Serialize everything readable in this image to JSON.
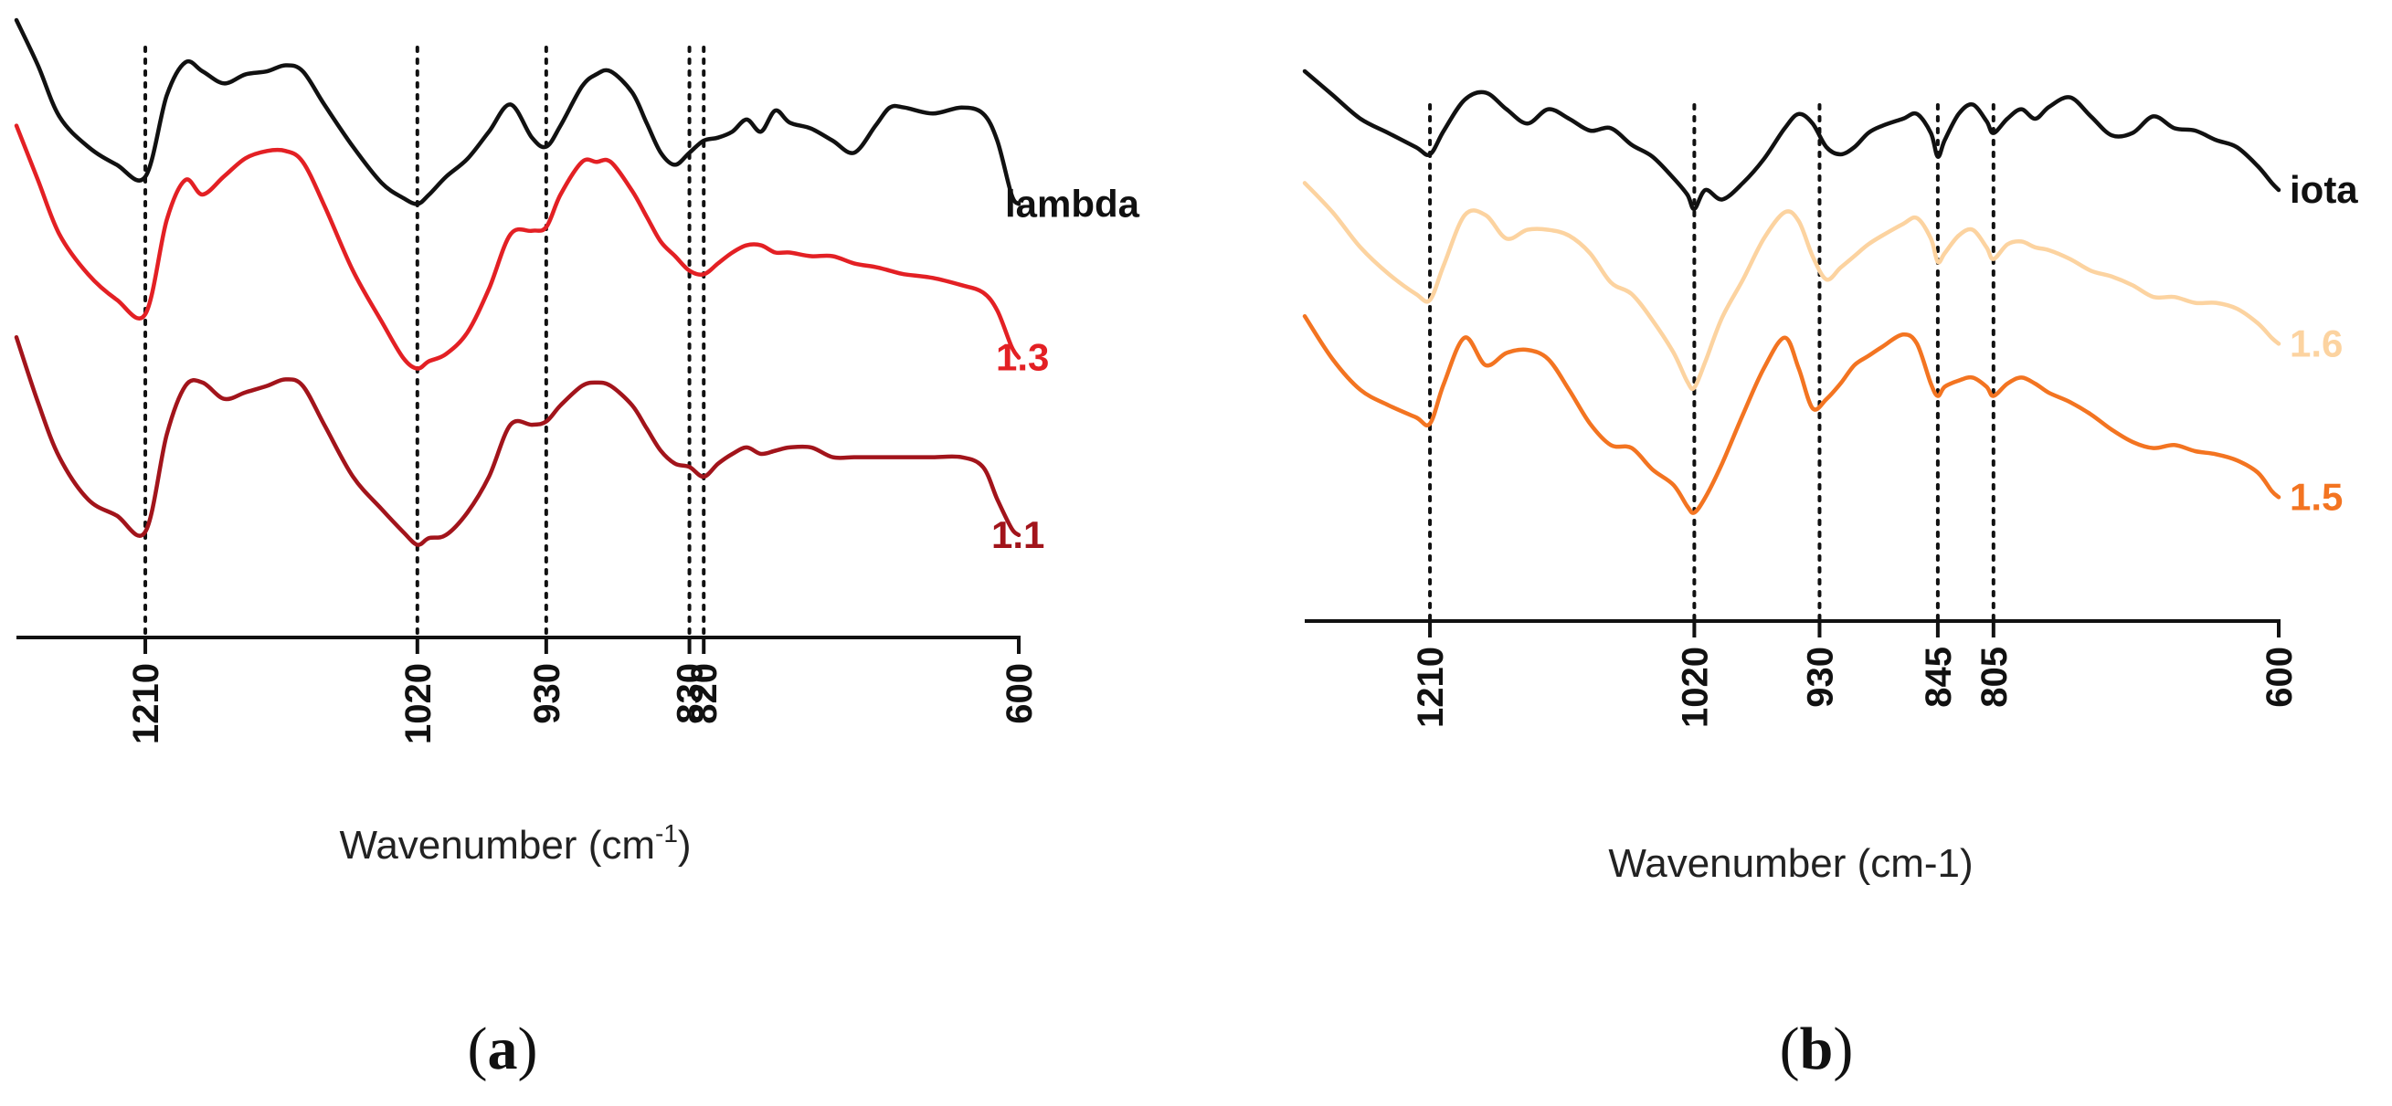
{
  "chart_data": [
    {
      "type": "line",
      "panel": "a",
      "panel_label": "a",
      "xlabel": "Wavenumber (cm",
      "xlabel_sup": "-1",
      "xlabel_end": ")",
      "xlim": [
        1300,
        600
      ],
      "x_ticks": [
        {
          "value": 1210,
          "label": "1210"
        },
        {
          "value": 1020,
          "label": "1020"
        },
        {
          "value": 930,
          "label": "930"
        },
        {
          "value": 830,
          "label": "830"
        },
        {
          "value": 820,
          "label": "820"
        },
        {
          "value": 600,
          "label": "600"
        }
      ],
      "reference_lines": [
        1210,
        1020,
        930,
        830,
        820
      ],
      "series": [
        {
          "name": "lambda",
          "color": "#111111",
          "x": [
            1300,
            1285,
            1270,
            1250,
            1230,
            1210,
            1195,
            1182,
            1170,
            1155,
            1140,
            1125,
            1112,
            1100,
            1085,
            1065,
            1045,
            1030,
            1020,
            1012,
            1000,
            985,
            970,
            955,
            940,
            930,
            920,
            905,
            895,
            885,
            870,
            860,
            850,
            840,
            830,
            820,
            810,
            800,
            790,
            780,
            770,
            760,
            745,
            730,
            715,
            700,
            690,
            680,
            660,
            640,
            625,
            615,
            605,
            600
          ],
          "y": [
            0.0,
            0.15,
            0.32,
            0.42,
            0.48,
            0.52,
            0.25,
            0.14,
            0.17,
            0.21,
            0.18,
            0.17,
            0.15,
            0.17,
            0.28,
            0.42,
            0.54,
            0.59,
            0.61,
            0.58,
            0.52,
            0.46,
            0.37,
            0.28,
            0.39,
            0.42,
            0.35,
            0.22,
            0.18,
            0.17,
            0.24,
            0.34,
            0.44,
            0.48,
            0.44,
            0.4,
            0.39,
            0.37,
            0.33,
            0.37,
            0.3,
            0.34,
            0.36,
            0.4,
            0.44,
            0.35,
            0.29,
            0.29,
            0.31,
            0.29,
            0.31,
            0.4,
            0.58,
            0.61
          ]
        },
        {
          "name": "1.3",
          "color": "#e32024",
          "x": [
            1300,
            1285,
            1270,
            1250,
            1230,
            1210,
            1195,
            1182,
            1170,
            1155,
            1140,
            1125,
            1112,
            1100,
            1085,
            1065,
            1045,
            1030,
            1020,
            1012,
            1000,
            985,
            970,
            955,
            940,
            930,
            920,
            905,
            895,
            885,
            870,
            860,
            850,
            840,
            830,
            820,
            810,
            800,
            790,
            780,
            770,
            760,
            745,
            730,
            715,
            700,
            690,
            680,
            660,
            640,
            625,
            615,
            605,
            600
          ],
          "y": [
            0.15,
            0.3,
            0.45,
            0.56,
            0.63,
            0.67,
            0.41,
            0.3,
            0.34,
            0.29,
            0.24,
            0.22,
            0.22,
            0.25,
            0.37,
            0.55,
            0.69,
            0.79,
            0.82,
            0.8,
            0.78,
            0.72,
            0.6,
            0.45,
            0.44,
            0.43,
            0.34,
            0.25,
            0.25,
            0.25,
            0.33,
            0.4,
            0.47,
            0.51,
            0.55,
            0.56,
            0.53,
            0.5,
            0.48,
            0.48,
            0.5,
            0.5,
            0.51,
            0.51,
            0.53,
            0.54,
            0.55,
            0.56,
            0.57,
            0.59,
            0.61,
            0.66,
            0.76,
            0.79
          ]
        },
        {
          "name": "1.1",
          "color": "#a2141b",
          "x": [
            1300,
            1285,
            1270,
            1250,
            1230,
            1210,
            1195,
            1182,
            1170,
            1155,
            1140,
            1125,
            1112,
            1100,
            1085,
            1065,
            1045,
            1030,
            1020,
            1012,
            1000,
            985,
            970,
            955,
            940,
            930,
            920,
            905,
            895,
            885,
            870,
            860,
            850,
            840,
            830,
            820,
            810,
            800,
            790,
            780,
            770,
            760,
            745,
            730,
            715,
            700,
            690,
            680,
            660,
            640,
            625,
            615,
            605,
            600
          ],
          "y": [
            0.35,
            0.55,
            0.72,
            0.85,
            0.9,
            0.95,
            0.65,
            0.5,
            0.49,
            0.54,
            0.52,
            0.5,
            0.48,
            0.5,
            0.62,
            0.78,
            0.88,
            0.95,
            0.99,
            0.97,
            0.96,
            0.89,
            0.78,
            0.62,
            0.62,
            0.61,
            0.56,
            0.5,
            0.49,
            0.5,
            0.56,
            0.63,
            0.7,
            0.74,
            0.75,
            0.78,
            0.74,
            0.71,
            0.69,
            0.71,
            0.7,
            0.69,
            0.69,
            0.72,
            0.72,
            0.72,
            0.72,
            0.72,
            0.72,
            0.72,
            0.75,
            0.85,
            0.94,
            0.96
          ]
        }
      ]
    },
    {
      "type": "line",
      "panel": "b",
      "panel_label": "b",
      "xlabel": "Wavenumber (cm-1)",
      "xlim": [
        1300,
        600
      ],
      "x_ticks": [
        {
          "value": 1210,
          "label": "1210"
        },
        {
          "value": 1020,
          "label": "1020"
        },
        {
          "value": 930,
          "label": "930"
        },
        {
          "value": 845,
          "label": "845"
        },
        {
          "value": 805,
          "label": "805"
        },
        {
          "value": 600,
          "label": "600"
        }
      ],
      "reference_lines": [
        1210,
        1020,
        930,
        845,
        805
      ],
      "series": [
        {
          "name": "iota",
          "color": "#111111",
          "x": [
            1300,
            1280,
            1260,
            1240,
            1220,
            1210,
            1200,
            1185,
            1170,
            1155,
            1140,
            1125,
            1110,
            1095,
            1080,
            1065,
            1050,
            1035,
            1025,
            1020,
            1012,
            1000,
            985,
            970,
            955,
            945,
            935,
            925,
            915,
            905,
            895,
            885,
            870,
            860,
            850,
            845,
            840,
            830,
            820,
            810,
            805,
            795,
            785,
            775,
            765,
            750,
            735,
            720,
            705,
            690,
            675,
            660,
            645,
            630,
            615,
            605,
            600
          ],
          "y": [
            0.0,
            0.1,
            0.2,
            0.26,
            0.32,
            0.35,
            0.25,
            0.12,
            0.09,
            0.16,
            0.22,
            0.16,
            0.2,
            0.25,
            0.24,
            0.31,
            0.36,
            0.45,
            0.52,
            0.58,
            0.5,
            0.54,
            0.47,
            0.37,
            0.24,
            0.18,
            0.22,
            0.32,
            0.35,
            0.32,
            0.26,
            0.23,
            0.2,
            0.18,
            0.26,
            0.36,
            0.29,
            0.18,
            0.14,
            0.21,
            0.26,
            0.2,
            0.16,
            0.2,
            0.15,
            0.11,
            0.19,
            0.27,
            0.26,
            0.19,
            0.24,
            0.25,
            0.29,
            0.32,
            0.4,
            0.47,
            0.5
          ]
        },
        {
          "name": "1.6",
          "color": "#fcd3a0",
          "x": [
            1300,
            1280,
            1260,
            1240,
            1220,
            1210,
            1200,
            1185,
            1170,
            1155,
            1140,
            1125,
            1110,
            1095,
            1080,
            1065,
            1050,
            1035,
            1025,
            1020,
            1012,
            1000,
            985,
            970,
            955,
            945,
            935,
            925,
            915,
            905,
            895,
            885,
            870,
            860,
            850,
            845,
            840,
            830,
            820,
            810,
            805,
            795,
            785,
            775,
            765,
            750,
            735,
            720,
            705,
            690,
            675,
            660,
            645,
            630,
            615,
            605,
            600
          ],
          "y": [
            0.12,
            0.22,
            0.34,
            0.43,
            0.5,
            0.52,
            0.4,
            0.23,
            0.23,
            0.31,
            0.28,
            0.28,
            0.3,
            0.36,
            0.46,
            0.5,
            0.59,
            0.7,
            0.8,
            0.82,
            0.73,
            0.58,
            0.45,
            0.31,
            0.22,
            0.25,
            0.37,
            0.45,
            0.41,
            0.37,
            0.33,
            0.3,
            0.26,
            0.24,
            0.31,
            0.39,
            0.36,
            0.3,
            0.28,
            0.34,
            0.38,
            0.33,
            0.32,
            0.34,
            0.35,
            0.38,
            0.42,
            0.44,
            0.47,
            0.51,
            0.51,
            0.53,
            0.53,
            0.55,
            0.6,
            0.65,
            0.67
          ]
        },
        {
          "name": "1.5",
          "color": "#f37421",
          "x": [
            1300,
            1280,
            1260,
            1240,
            1220,
            1210,
            1200,
            1185,
            1170,
            1155,
            1140,
            1125,
            1110,
            1095,
            1080,
            1065,
            1050,
            1035,
            1025,
            1020,
            1012,
            1000,
            985,
            970,
            955,
            945,
            935,
            925,
            915,
            905,
            895,
            885,
            870,
            860,
            850,
            845,
            840,
            830,
            820,
            810,
            805,
            795,
            785,
            775,
            765,
            750,
            735,
            720,
            705,
            690,
            675,
            660,
            645,
            630,
            615,
            605,
            600
          ],
          "y": [
            0.31,
            0.45,
            0.55,
            0.6,
            0.64,
            0.66,
            0.53,
            0.38,
            0.47,
            0.43,
            0.42,
            0.45,
            0.55,
            0.66,
            0.73,
            0.74,
            0.81,
            0.86,
            0.93,
            0.95,
            0.9,
            0.79,
            0.63,
            0.48,
            0.38,
            0.48,
            0.61,
            0.58,
            0.53,
            0.47,
            0.44,
            0.41,
            0.37,
            0.4,
            0.53,
            0.57,
            0.54,
            0.52,
            0.51,
            0.54,
            0.57,
            0.53,
            0.51,
            0.53,
            0.56,
            0.59,
            0.63,
            0.68,
            0.72,
            0.74,
            0.73,
            0.75,
            0.76,
            0.78,
            0.82,
            0.88,
            0.9
          ]
        }
      ]
    }
  ]
}
